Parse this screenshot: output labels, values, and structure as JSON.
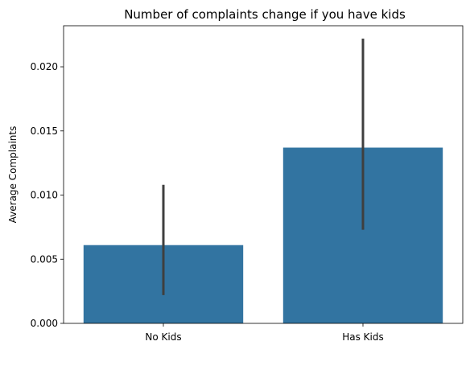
{
  "chart_data": {
    "type": "bar",
    "title": "Number of complaints change if you have kids",
    "xlabel": "",
    "ylabel": "Average Complaints",
    "categories": [
      "No Kids",
      "Has Kids"
    ],
    "values": [
      0.0061,
      0.0137
    ],
    "error_bars": [
      {
        "low": 0.0022,
        "high": 0.0108
      },
      {
        "low": 0.0073,
        "high": 0.0222
      }
    ],
    "ylim": [
      0,
      0.0232
    ],
    "yticks": [
      "0.000",
      "0.005",
      "0.010",
      "0.015",
      "0.020"
    ],
    "ytick_values": [
      0,
      0.005,
      0.01,
      0.015,
      0.02
    ],
    "grid": false,
    "colors": {
      "bar": "#3274a1",
      "error_bar": "#3f3f3f",
      "axis": "#000000"
    }
  }
}
